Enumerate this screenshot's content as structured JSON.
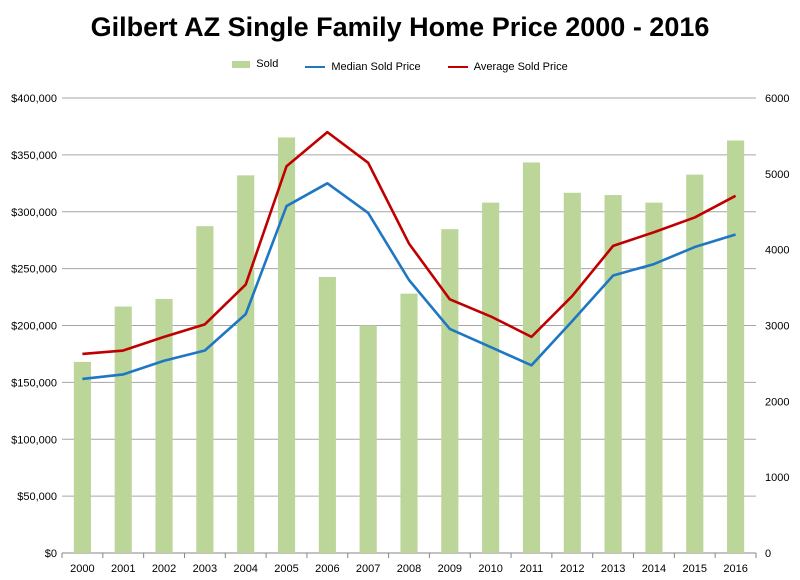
{
  "chart_data": {
    "type": "bar",
    "title": "Gilbert AZ Single Family Home Price 2000 - 2016",
    "categories": [
      "2000",
      "2001",
      "2002",
      "2003",
      "2004",
      "2005",
      "2006",
      "2007",
      "2008",
      "2009",
      "2010",
      "2011",
      "2012",
      "2013",
      "2014",
      "2015",
      "2016"
    ],
    "series": [
      {
        "name": "Sold",
        "type": "bar",
        "axis": "right",
        "color": "#bcd69a",
        "values": [
          2520,
          3250,
          3350,
          4310,
          4980,
          5480,
          3640,
          3000,
          3420,
          4270,
          4620,
          5150,
          4750,
          4720,
          4620,
          4990,
          5440
        ]
      },
      {
        "name": "Median Sold Price",
        "type": "line",
        "axis": "left",
        "color": "#1f77c4",
        "values": [
          153000,
          157000,
          169000,
          178000,
          210000,
          305000,
          325000,
          299000,
          240000,
          197000,
          181000,
          165000,
          204000,
          244000,
          254000,
          269000,
          280000
        ]
      },
      {
        "name": "Average Sold Price",
        "type": "line",
        "axis": "left",
        "color": "#c00000",
        "values": [
          175000,
          178000,
          190000,
          201000,
          236000,
          340000,
          370000,
          343000,
          272000,
          223000,
          208000,
          190000,
          226000,
          270000,
          282000,
          295000,
          314000
        ]
      }
    ],
    "y_left": {
      "min": 0,
      "max": 400000,
      "ticks": [
        "$0",
        "$50,000",
        "$100,000",
        "$150,000",
        "$200,000",
        "$250,000",
        "$300,000",
        "$350,000",
        "$400,000"
      ]
    },
    "y_right": {
      "min": 0,
      "max": 6000,
      "ticks": [
        "0",
        "1000",
        "2000",
        "3000",
        "4000",
        "5000",
        "6000"
      ]
    },
    "grid": true,
    "legend_position": "top"
  }
}
